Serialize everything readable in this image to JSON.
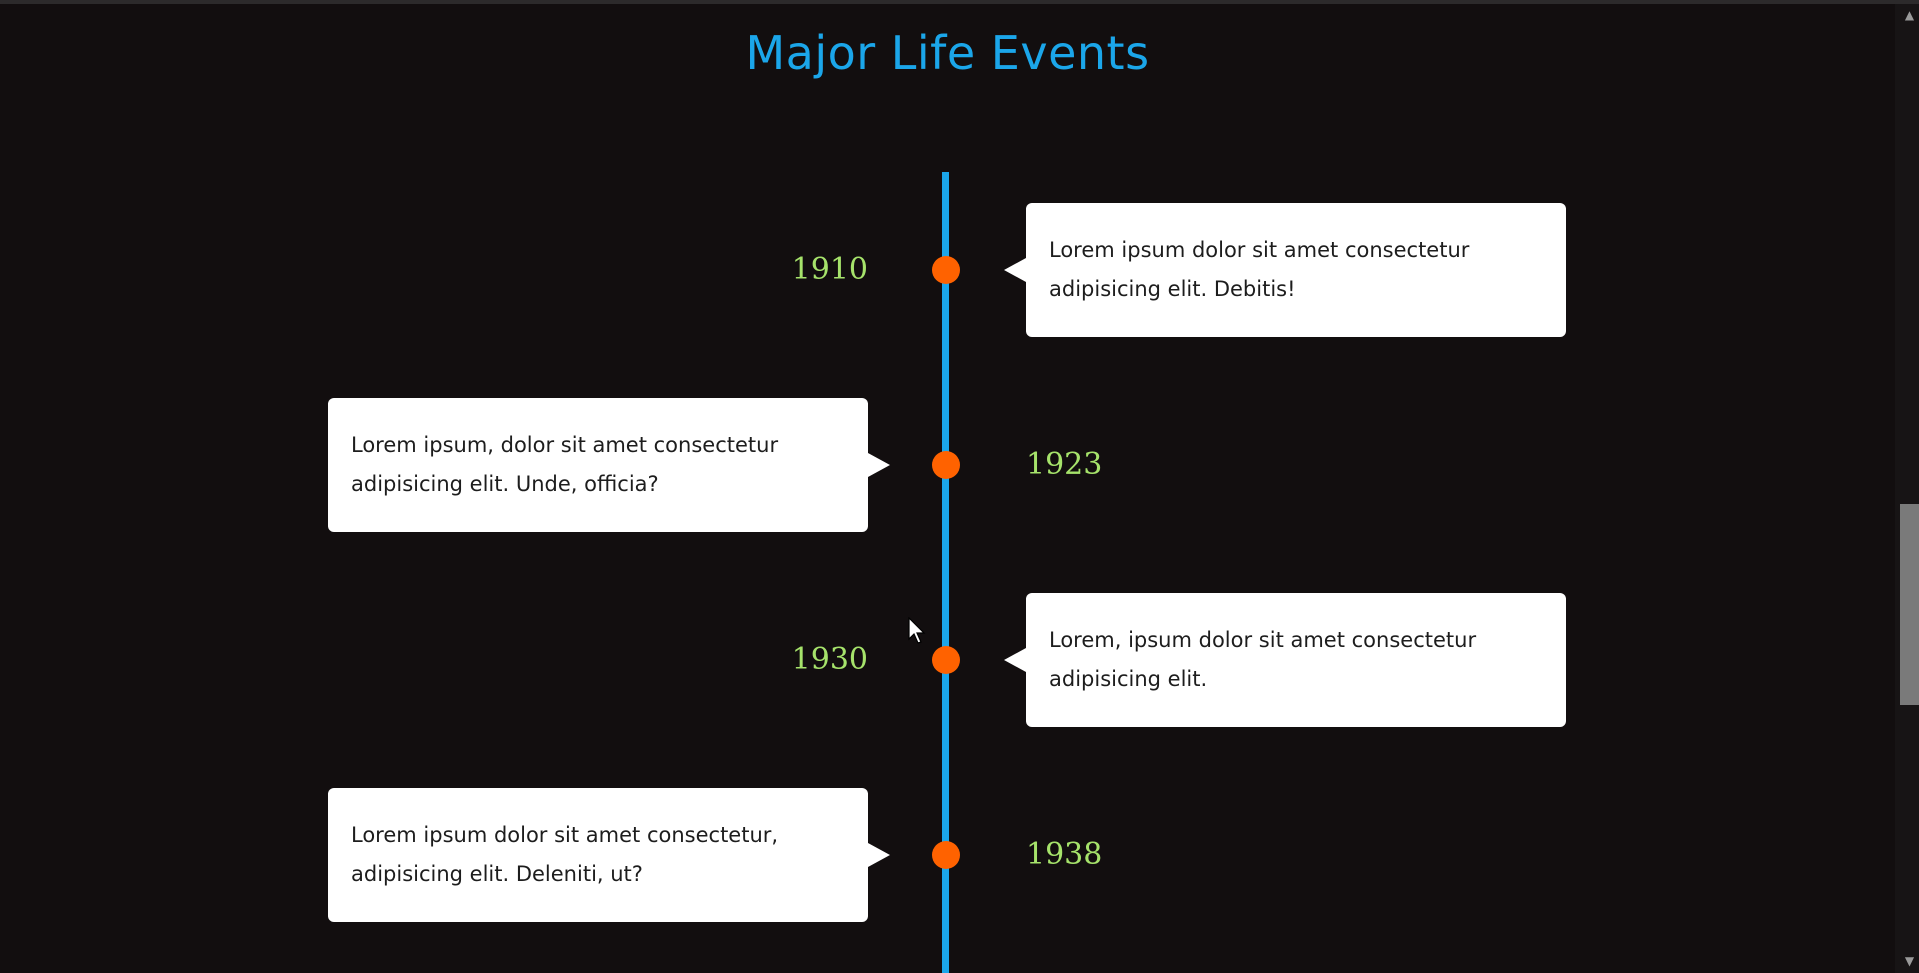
{
  "page": {
    "title": "Major Life Events"
  },
  "events": [
    {
      "year": "1910",
      "text": "Lorem ipsum dolor sit amet consectetur adipisicing elit. Debitis!"
    },
    {
      "year": "1923",
      "text": "Lorem ipsum, dolor sit amet consectetur adipisicing elit. Unde, officia?"
    },
    {
      "year": "1930",
      "text": "Lorem, ipsum dolor sit amet consectetur adipisicing elit."
    },
    {
      "year": "1938",
      "text": "Lorem ipsum dolor sit amet consectetur, adipisicing elit. Deleniti, ut?"
    }
  ],
  "colors": {
    "background": "#120e0f",
    "title": "#1ba6ea",
    "line": "#1ba6ea",
    "dot": "#ff6200",
    "year": "#a6e36b",
    "card": "#ffffff"
  },
  "icons": {
    "scroll_up": "chevron-up-icon",
    "scroll_down": "chevron-down-icon",
    "cursor": "mouse-pointer-icon"
  }
}
